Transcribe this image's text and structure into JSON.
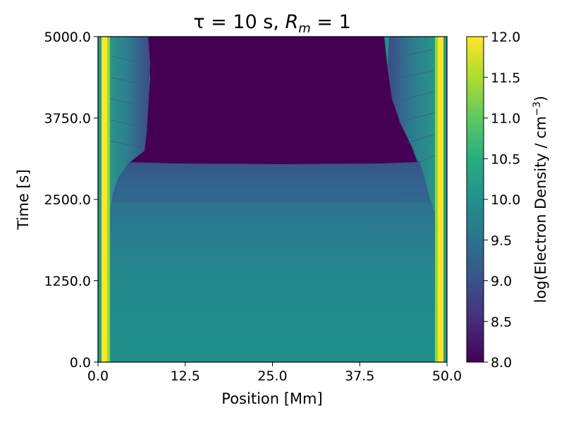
{
  "chart_data": {
    "type": "heatmap",
    "title_main": "τ = 10 s, ",
    "title_var": "R",
    "title_sub": "m",
    "title_tail": " = 1",
    "xlabel": "Position [Mm]",
    "ylabel": "Time [s]",
    "xlim": [
      0.0,
      50.0
    ],
    "ylim": [
      0.0,
      5000.0
    ],
    "x_ticks": [
      0.0,
      12.5,
      25.0,
      37.5,
      50.0
    ],
    "x_tick_labels": [
      "0.0",
      "12.5",
      "25.0",
      "37.5",
      "50.0"
    ],
    "y_ticks": [
      0.0,
      1250.0,
      2500.0,
      3750.0,
      5000.0
    ],
    "y_tick_labels": [
      "0.0",
      "1250.0",
      "2500.0",
      "3750.0",
      "5000.0"
    ],
    "colorbar": {
      "label_main": "log(Electron Density / cm",
      "label_sup": "−3",
      "label_end": ")",
      "range": [
        8.0,
        12.0
      ],
      "ticks": [
        8.0,
        8.5,
        9.0,
        9.5,
        10.0,
        10.5,
        11.0,
        11.5,
        12.0
      ],
      "tick_labels": [
        "8.0",
        "8.5",
        "9.0",
        "9.5",
        "10.0",
        "10.5",
        "11.0",
        "11.5",
        "12.0"
      ],
      "colormap": "viridis"
    },
    "regions": [
      {
        "x_range": [
          0.5,
          1.5
        ],
        "t_range": [
          0,
          5000
        ],
        "log_density": 12.0,
        "note": "left footpoint"
      },
      {
        "x_range": [
          48.5,
          49.5
        ],
        "t_range": [
          0,
          5000
        ],
        "log_density": 12.0,
        "note": "right footpoint"
      },
      {
        "x_range": [
          2,
          48
        ],
        "t_range": [
          0,
          2400
        ],
        "log_density": 9.9
      },
      {
        "x_range": [
          3,
          47
        ],
        "t_range": [
          2400,
          3000
        ],
        "log_density": 9.2
      },
      {
        "x_range": [
          7,
          42
        ],
        "t_range": [
          3000,
          5000
        ],
        "log_density": 8.0
      },
      {
        "x_range": [
          1.5,
          7
        ],
        "t_range": [
          3000,
          5000
        ],
        "log_density": 9.4
      },
      {
        "x_range": [
          42,
          48.5
        ],
        "t_range": [
          3000,
          5000
        ],
        "log_density": 9.4
      }
    ]
  }
}
